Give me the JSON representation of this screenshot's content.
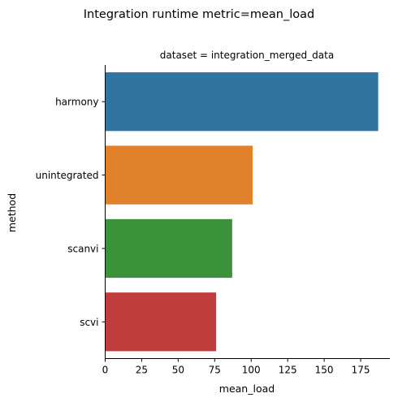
{
  "chart_data": {
    "type": "bar",
    "orientation": "horizontal",
    "title": "Integration runtime metric=mean_load",
    "subtitle": "dataset = integration_merged_data",
    "xlabel": "mean_load",
    "ylabel": "method",
    "categories": [
      "harmony",
      "unintegrated",
      "scanvi",
      "scvi"
    ],
    "values": [
      187,
      101,
      87,
      76
    ],
    "colors": [
      "#3274a1",
      "#e1812c",
      "#3a923a",
      "#c03d3e"
    ],
    "xlim": [
      0,
      195
    ],
    "xticks": [
      0,
      25,
      50,
      75,
      100,
      125,
      150,
      175
    ],
    "grid": false,
    "legend": "none"
  }
}
